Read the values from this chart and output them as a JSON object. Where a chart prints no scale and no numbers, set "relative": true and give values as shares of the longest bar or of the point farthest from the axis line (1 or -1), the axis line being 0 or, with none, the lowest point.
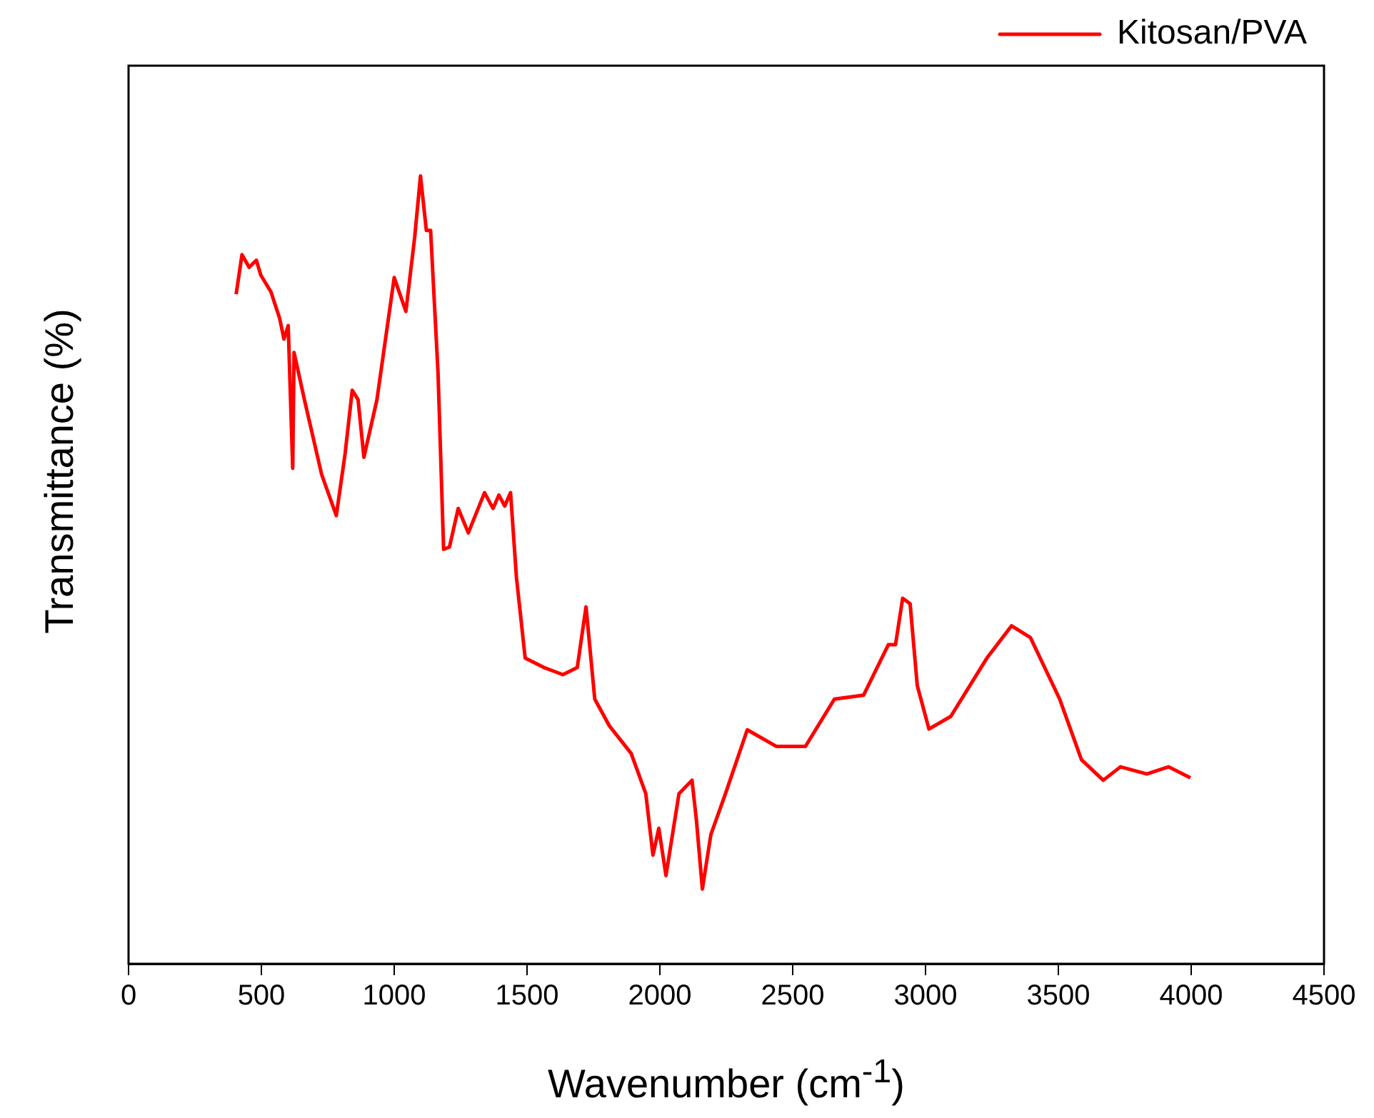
{
  "chart_data": {
    "type": "line",
    "xlabel": "Wavenumber (cm$^{-1}$)",
    "ylabel": "Transmittance (%)",
    "relative": true,
    "xlim": [
      0,
      4500
    ],
    "xticks": [
      0,
      500,
      1000,
      1500,
      2000,
      2500,
      3000,
      3500,
      4000,
      4500
    ],
    "grid": false,
    "legend": "top right",
    "marker": "none",
    "line_style": "solid",
    "x": [
      405,
      427,
      454,
      481,
      498,
      536,
      569,
      585,
      601,
      618,
      623,
      662,
      727,
      782,
      815,
      842,
      864,
      886,
      935,
      1000,
      1044,
      1077,
      1099,
      1121,
      1137,
      1165,
      1186,
      1208,
      1241,
      1279,
      1340,
      1372,
      1394,
      1416,
      1438,
      1460,
      1493,
      1564,
      1635,
      1689,
      1722,
      1755,
      1810,
      1892,
      1947,
      1974,
      1996,
      2023,
      2072,
      2121,
      2138,
      2160,
      2192,
      2247,
      2329,
      2438,
      2548,
      2657,
      2767,
      2860,
      2887,
      2914,
      2942,
      2969,
      3013,
      3095,
      3231,
      3324,
      3395,
      3505,
      3587,
      3669,
      3734,
      3833,
      3915,
      3997
    ],
    "series": [
      {
        "name": "Kitosan/PVA",
        "color": "#ff0000",
        "values": [
          0.85,
          0.9,
          0.884,
          0.893,
          0.874,
          0.853,
          0.819,
          0.793,
          0.81,
          0.629,
          0.776,
          0.716,
          0.621,
          0.569,
          0.647,
          0.728,
          0.716,
          0.643,
          0.716,
          0.871,
          0.828,
          0.922,
          1.0,
          0.931,
          0.931,
          0.75,
          0.526,
          0.529,
          0.578,
          0.547,
          0.598,
          0.578,
          0.595,
          0.581,
          0.598,
          0.491,
          0.388,
          0.376,
          0.367,
          0.376,
          0.453,
          0.336,
          0.302,
          0.267,
          0.216,
          0.138,
          0.172,
          0.112,
          0.216,
          0.233,
          0.181,
          0.095,
          0.164,
          0.216,
          0.297,
          0.276,
          0.276,
          0.336,
          0.341,
          0.405,
          0.405,
          0.464,
          0.457,
          0.353,
          0.298,
          0.314,
          0.388,
          0.429,
          0.414,
          0.336,
          0.259,
          0.233,
          0.25,
          0.241,
          0.25,
          0.236
        ]
      }
    ]
  }
}
